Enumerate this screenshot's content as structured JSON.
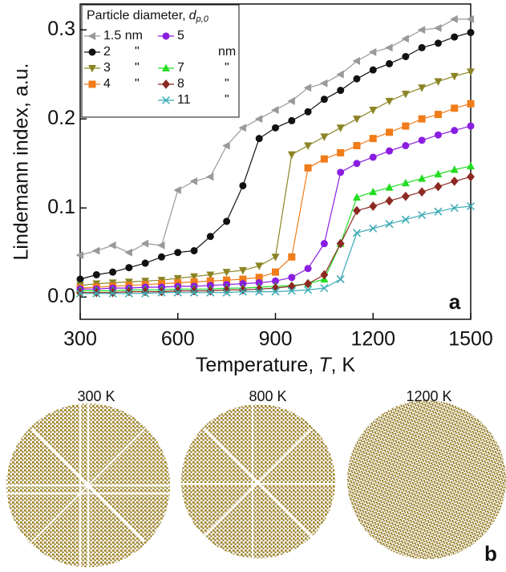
{
  "chart_data": {
    "type": "line",
    "y_label": "Lindemann index, a.u.",
    "x_label": [
      "Temperature,",
      "T",
      ", K"
    ],
    "panel_labels": [
      "a",
      "b"
    ],
    "legend_title": [
      "Particle diameter,",
      "d",
      "p,0"
    ],
    "image_captions": [
      "300 K",
      "800 K",
      "1200 K"
    ],
    "xlim": [
      300,
      1500
    ],
    "xticks": [
      300,
      600,
      900,
      1200,
      1500
    ],
    "ylim": [
      -0.025,
      0.329
    ],
    "yticks": [
      {
        "value": 0,
        "label": "0.0"
      },
      0.1,
      0.2,
      0.3
    ],
    "x": [
      300,
      350,
      400,
      450,
      500,
      550,
      600,
      650,
      700,
      750,
      800,
      850,
      900,
      950,
      1000,
      1050,
      1100,
      1150,
      1200,
      1250,
      1300,
      1350,
      1400,
      1450,
      1500
    ],
    "series": [
      {
        "name": "1.5 nm",
        "color": "#999999",
        "marker": "triangle-left",
        "values": [
          0.047,
          0.052,
          0.058,
          0.05,
          0.06,
          0.058,
          0.12,
          0.13,
          0.135,
          0.17,
          0.19,
          0.2,
          0.21,
          0.22,
          0.235,
          0.24,
          0.25,
          0.265,
          0.275,
          0.28,
          0.29,
          0.3,
          0.302,
          0.312,
          0.312
        ]
      },
      {
        "name": "2",
        "unit_label": "\"",
        "color": "#111111",
        "marker": "circle",
        "values": [
          0.02,
          0.025,
          0.028,
          0.033,
          0.038,
          0.045,
          0.05,
          0.052,
          0.068,
          0.085,
          0.125,
          0.178,
          0.19,
          0.198,
          0.208,
          0.222,
          0.232,
          0.245,
          0.255,
          0.262,
          0.27,
          0.28,
          0.285,
          0.292,
          0.297
        ]
      },
      {
        "name": "3",
        "unit_label": "\"",
        "color": "#8b8424",
        "marker": "triangle-down",
        "values": [
          0.013,
          0.015,
          0.016,
          0.017,
          0.018,
          0.019,
          0.021,
          0.023,
          0.025,
          0.028,
          0.03,
          0.035,
          0.045,
          0.16,
          0.17,
          0.18,
          0.19,
          0.2,
          0.21,
          0.22,
          0.228,
          0.235,
          0.242,
          0.248,
          0.253
        ]
      },
      {
        "name": "4",
        "unit_label": "\"",
        "color": "#f07c1a",
        "marker": "square",
        "values": [
          0.01,
          0.011,
          0.012,
          0.013,
          0.014,
          0.015,
          0.016,
          0.017,
          0.018,
          0.019,
          0.02,
          0.022,
          0.028,
          0.045,
          0.145,
          0.155,
          0.162,
          0.17,
          0.178,
          0.185,
          0.192,
          0.2,
          0.205,
          0.212,
          0.217
        ]
      },
      {
        "name": "5",
        "unit_label": "nm",
        "color": "#8a1ee0",
        "marker": "circle",
        "values": [
          0.009,
          0.009,
          0.01,
          0.01,
          0.011,
          0.011,
          0.012,
          0.012,
          0.013,
          0.014,
          0.015,
          0.016,
          0.018,
          0.022,
          0.032,
          0.06,
          0.14,
          0.15,
          0.157,
          0.164,
          0.17,
          0.176,
          0.182,
          0.187,
          0.192
        ]
      },
      {
        "name": "7",
        "unit_label": "\"",
        "color": "#22dd22",
        "marker": "triangle-up",
        "values": [
          0.007,
          0.007,
          0.007,
          0.008,
          0.008,
          0.008,
          0.009,
          0.009,
          0.009,
          0.01,
          0.01,
          0.011,
          0.012,
          0.013,
          0.015,
          0.02,
          0.06,
          0.112,
          0.118,
          0.123,
          0.128,
          0.133,
          0.138,
          0.143,
          0.147
        ]
      },
      {
        "name": "8",
        "unit_label": "\"",
        "color": "#8b2a22",
        "marker": "diamond",
        "values": [
          0.005,
          0.005,
          0.005,
          0.006,
          0.006,
          0.006,
          0.007,
          0.007,
          0.007,
          0.008,
          0.008,
          0.009,
          0.01,
          0.012,
          0.015,
          0.025,
          0.06,
          0.097,
          0.102,
          0.108,
          0.113,
          0.118,
          0.124,
          0.13,
          0.135
        ]
      },
      {
        "name": "11",
        "unit_label": "\"",
        "color": "#3aaab5",
        "marker": "cross",
        "values": [
          0.004,
          0.004,
          0.004,
          0.004,
          0.004,
          0.005,
          0.005,
          0.005,
          0.005,
          0.005,
          0.006,
          0.006,
          0.006,
          0.007,
          0.008,
          0.01,
          0.02,
          0.072,
          0.077,
          0.082,
          0.087,
          0.092,
          0.096,
          0.1,
          0.102
        ]
      }
    ]
  }
}
